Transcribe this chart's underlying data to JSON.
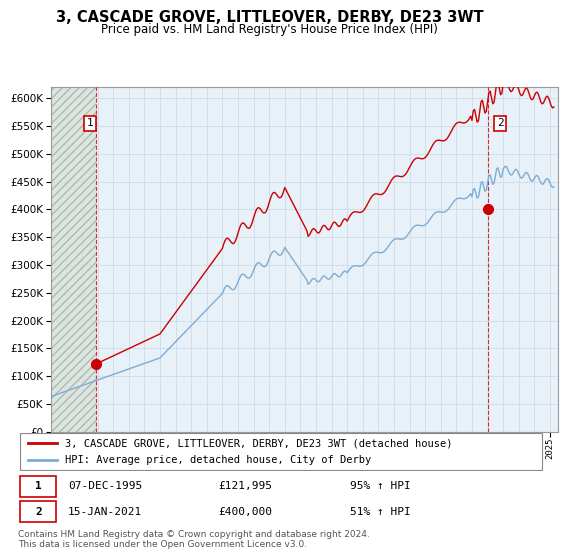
{
  "title": "3, CASCADE GROVE, LITTLEOVER, DERBY, DE23 3WT",
  "subtitle": "Price paid vs. HM Land Registry's House Price Index (HPI)",
  "ylim": [
    0,
    620000
  ],
  "yticks": [
    0,
    50000,
    100000,
    150000,
    200000,
    250000,
    300000,
    350000,
    400000,
    450000,
    500000,
    550000,
    600000
  ],
  "ytick_labels": [
    "£0",
    "£50K",
    "£100K",
    "£150K",
    "£200K",
    "£250K",
    "£300K",
    "£350K",
    "£400K",
    "£450K",
    "£500K",
    "£550K",
    "£600K"
  ],
  "legend_label_red": "3, CASCADE GROVE, LITTLEOVER, DERBY, DE23 3WT (detached house)",
  "legend_label_blue": "HPI: Average price, detached house, City of Derby",
  "marker1_label": "07-DEC-1995",
  "marker1_price": "£121,995",
  "marker1_hpi": "95% ↑ HPI",
  "marker2_label": "15-JAN-2021",
  "marker2_price": "£400,000",
  "marker2_hpi": "51% ↑ HPI",
  "footer": "Contains HM Land Registry data © Crown copyright and database right 2024.\nThis data is licensed under the Open Government Licence v3.0.",
  "red_color": "#cc0000",
  "blue_color": "#7dadd4",
  "grid_color": "#c8d8e8",
  "plot_bg_color": "#e8f0f8",
  "hatch_bg_color": "#dde8dd",
  "marker1_x": 1995.92,
  "marker1_y": 121995,
  "marker2_x": 2021.04,
  "marker2_y": 400000,
  "num1_chart_x": 1995.5,
  "num1_chart_y": 555000,
  "num2_chart_x": 2021.8,
  "num2_chart_y": 555000,
  "xmin": 1993.0,
  "xmax": 2025.5,
  "hatch_xmax": 1995.92
}
